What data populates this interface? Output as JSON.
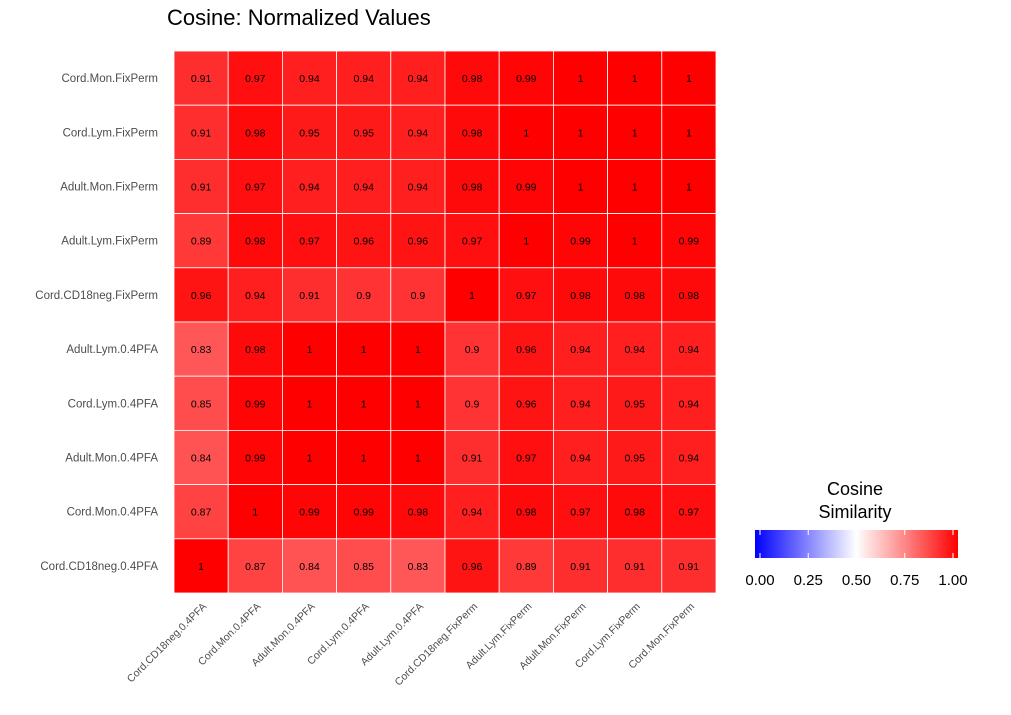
{
  "chart_data": {
    "type": "heatmap",
    "title": "Cosine: Normalized Values",
    "x_categories": [
      "Cord.CD18neg.0.4PFA",
      "Cord.Mon.0.4PFA",
      "Adult.Mon.0.4PFA",
      "Cord.Lym.0.4PFA",
      "Adult.Lym.0.4PFA",
      "Cord.CD18neg.FixPerm",
      "Adult.Lym.FixPerm",
      "Adult.Mon.FixPerm",
      "Cord.Lym.FixPerm",
      "Cord.Mon.FixPerm"
    ],
    "y_categories": [
      "Cord.Mon.FixPerm",
      "Cord.Lym.FixPerm",
      "Adult.Mon.FixPerm",
      "Adult.Lym.FixPerm",
      "Cord.CD18neg.FixPerm",
      "Adult.Lym.0.4PFA",
      "Cord.Lym.0.4PFA",
      "Adult.Mon.0.4PFA",
      "Cord.Mon.0.4PFA",
      "Cord.CD18neg.0.4PFA"
    ],
    "values": [
      [
        0.91,
        0.97,
        0.94,
        0.94,
        0.94,
        0.98,
        0.99,
        1,
        1,
        1
      ],
      [
        0.91,
        0.98,
        0.95,
        0.95,
        0.94,
        0.98,
        1,
        1,
        1,
        1
      ],
      [
        0.91,
        0.97,
        0.94,
        0.94,
        0.94,
        0.98,
        0.99,
        1,
        1,
        1
      ],
      [
        0.89,
        0.98,
        0.97,
        0.96,
        0.96,
        0.97,
        1,
        0.99,
        1,
        0.99
      ],
      [
        0.96,
        0.94,
        0.91,
        0.9,
        0.9,
        1,
        0.97,
        0.98,
        0.98,
        0.98
      ],
      [
        0.83,
        0.98,
        1,
        1,
        1,
        0.9,
        0.96,
        0.94,
        0.94,
        0.94
      ],
      [
        0.85,
        0.99,
        1,
        1,
        1,
        0.9,
        0.96,
        0.94,
        0.95,
        0.94
      ],
      [
        0.84,
        0.99,
        1,
        1,
        1,
        0.91,
        0.97,
        0.94,
        0.95,
        0.94
      ],
      [
        0.87,
        1,
        0.99,
        0.99,
        0.98,
        0.94,
        0.98,
        0.97,
        0.98,
        0.97
      ],
      [
        1,
        0.87,
        0.84,
        0.85,
        0.83,
        0.96,
        0.89,
        0.91,
        0.91,
        0.91
      ]
    ],
    "legend": {
      "title_lines": [
        "Cosine",
        "Similarity"
      ],
      "ticks": [
        "0.00",
        "0.25",
        "0.50",
        "0.75",
        "1.00"
      ],
      "tick_values": [
        0,
        0.25,
        0.5,
        0.75,
        1
      ],
      "range": [
        0,
        1
      ],
      "colors": {
        "low": "#0000ff",
        "mid": "#ffffff",
        "high": "#ff0000"
      },
      "midpoint": 0.5,
      "placement": "right"
    },
    "grid_line_color": "#ffffff"
  }
}
